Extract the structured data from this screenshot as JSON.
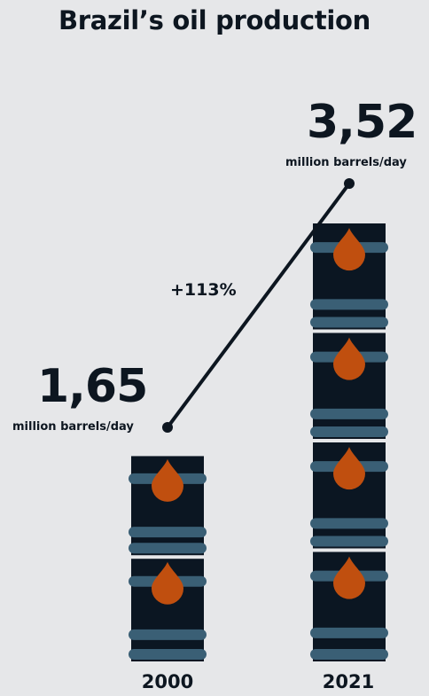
{
  "title": "Brazil’s oil production",
  "colors": {
    "background": "#e6e7e9",
    "barrel": "#0b1622",
    "ring": "#3a5f75",
    "drop": "#c04f0f",
    "text": "#0d1620"
  },
  "icons": [
    "oil-barrel-icon",
    "oil-drop-icon"
  ],
  "chart_data": {
    "type": "bar",
    "title": "Brazil’s oil production",
    "categories": [
      "2000",
      "2021"
    ],
    "series": [
      {
        "values": [
          1.65,
          3.52
        ],
        "value_labels": [
          "1,65",
          "3,52"
        ]
      }
    ],
    "unit": "million barrels/day",
    "annotation": "+113%",
    "ylim": [
      0,
      3.52
    ],
    "grid": false
  }
}
